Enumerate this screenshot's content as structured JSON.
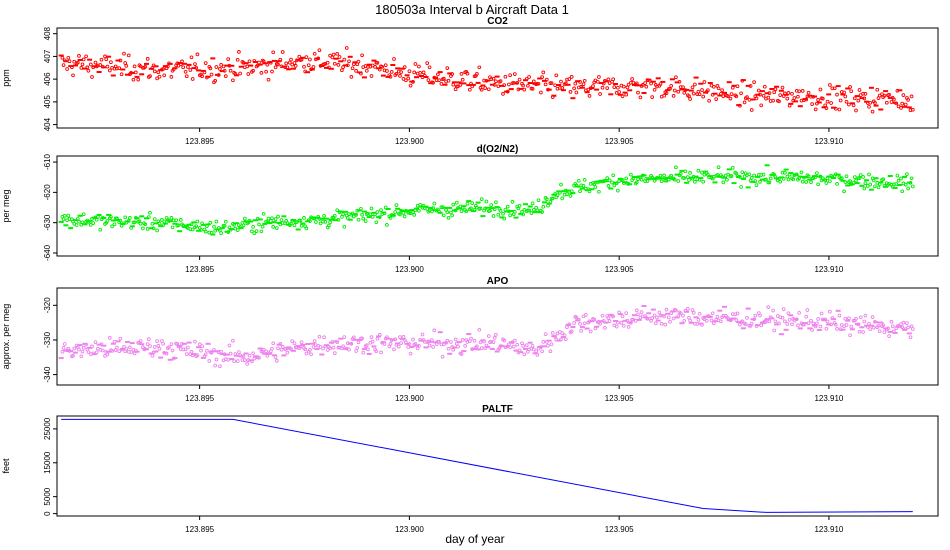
{
  "figure": {
    "title": "180503a   Interval b Aircraft Data 1",
    "xlabel": "day of year"
  },
  "colors": {
    "co2": "#ff0000",
    "o2n2": "#00ee00",
    "apo": "#ee82ee",
    "paltf": "#0000ff",
    "frame": "#000000"
  },
  "chart_data": [
    {
      "id": "co2",
      "type": "scatter",
      "title": "CO2",
      "ylabel": "ppm",
      "x_ticks": [
        123.895,
        123.9,
        123.905,
        123.91
      ],
      "x_tick_labels": [
        "123.895",
        "123.900",
        "123.905",
        "123.910"
      ],
      "xlim": [
        123.8916,
        123.9126
      ],
      "y_ticks": [
        404,
        405,
        406,
        407,
        408
      ],
      "y_tick_labels": [
        "404",
        "405",
        "406",
        "407",
        "408"
      ],
      "ylim": [
        403.85,
        408.25
      ],
      "x": [
        123.8917,
        123.894,
        123.896,
        123.8975,
        123.899,
        123.9,
        123.902,
        123.904,
        123.906,
        123.908,
        123.91,
        123.912
      ],
      "values": [
        406.7,
        406.4,
        406.5,
        406.8,
        406.6,
        406.2,
        405.8,
        405.6,
        405.7,
        405.3,
        405.2,
        405.1
      ],
      "noise": 0.45
    },
    {
      "id": "o2n2",
      "type": "scatter",
      "title": "d(O2/N2)",
      "ylabel": "per meg",
      "x_ticks": [
        123.895,
        123.9,
        123.905,
        123.91
      ],
      "x_tick_labels": [
        "123.895",
        "123.900",
        "123.905",
        "123.910"
      ],
      "xlim": [
        123.8916,
        123.9126
      ],
      "y_ticks": [
        -640,
        -630,
        -620,
        -610
      ],
      "y_tick_labels": [
        "-640",
        "-630",
        "-620",
        "-610"
      ],
      "ylim": [
        -641,
        -608
      ],
      "x": [
        123.8917,
        123.894,
        123.8955,
        123.8965,
        123.898,
        123.9,
        123.902,
        123.903,
        123.9035,
        123.905,
        123.907,
        123.909,
        123.912
      ],
      "values": [
        -629,
        -630,
        -632,
        -630,
        -629,
        -626,
        -625,
        -626,
        -620,
        -616,
        -615,
        -615,
        -617
      ],
      "noise": 2.2
    },
    {
      "id": "apo",
      "type": "scatter",
      "title": "APO",
      "ylabel": "approx. per meg",
      "x_ticks": [
        123.895,
        123.9,
        123.905,
        123.91
      ],
      "x_tick_labels": [
        "123.895",
        "123.900",
        "123.905",
        "123.910"
      ],
      "xlim": [
        123.8916,
        123.9126
      ],
      "y_ticks": [
        -340,
        -330,
        -320
      ],
      "y_tick_labels": [
        "-340",
        "-330",
        "-320"
      ],
      "ylim": [
        -343,
        -315
      ],
      "x": [
        123.8917,
        123.894,
        123.896,
        123.898,
        123.9,
        123.902,
        123.903,
        123.904,
        123.906,
        123.908,
        123.91,
        123.912
      ],
      "values": [
        -333,
        -332,
        -335,
        -331,
        -331,
        -331,
        -333,
        -325,
        -323,
        -324,
        -325,
        -327
      ],
      "noise": 2.6
    },
    {
      "id": "paltf",
      "type": "line",
      "title": "PALTF",
      "ylabel": "feet",
      "x_ticks": [
        123.895,
        123.9,
        123.905,
        123.91
      ],
      "x_tick_labels": [
        "123.895",
        "123.900",
        "123.905",
        "123.910"
      ],
      "xlim": [
        123.8916,
        123.9126
      ],
      "y_ticks": [
        0,
        5000,
        15000,
        25000
      ],
      "y_tick_labels": [
        "0",
        "5000",
        "15000",
        "25000"
      ],
      "ylim": [
        -700,
        28800
      ],
      "x": [
        123.8917,
        123.8958,
        123.907,
        123.9085,
        123.912
      ],
      "values": [
        27800,
        27800,
        1500,
        350,
        600
      ]
    }
  ]
}
